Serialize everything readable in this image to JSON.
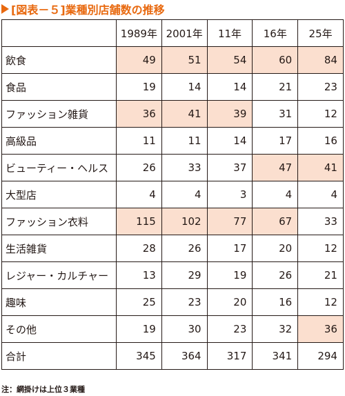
{
  "title": "[図表－５]業種別店舗数の推移",
  "highlight_color": "#fbdfcf",
  "accent_color": "#e8690f",
  "table": {
    "corner": "",
    "columns": [
      "1989年",
      "2001年",
      "11年",
      "16年",
      "25年"
    ],
    "rows": [
      {
        "label": "飲食",
        "values": [
          "49",
          "51",
          "54",
          "60",
          "84"
        ],
        "highlight": [
          true,
          true,
          true,
          true,
          true
        ]
      },
      {
        "label": "食品",
        "values": [
          "19",
          "14",
          "14",
          "21",
          "23"
        ],
        "highlight": [
          false,
          false,
          false,
          false,
          false
        ]
      },
      {
        "label": "ファッション雑貨",
        "values": [
          "36",
          "41",
          "39",
          "31",
          "12"
        ],
        "highlight": [
          true,
          true,
          true,
          false,
          false
        ]
      },
      {
        "label": "高級品",
        "values": [
          "11",
          "11",
          "14",
          "17",
          "16"
        ],
        "highlight": [
          false,
          false,
          false,
          false,
          false
        ]
      },
      {
        "label": "ビューティー・ヘルス",
        "values": [
          "26",
          "33",
          "37",
          "47",
          "41"
        ],
        "highlight": [
          false,
          false,
          false,
          true,
          true
        ]
      },
      {
        "label": "大型店",
        "values": [
          "4",
          "4",
          "3",
          "4",
          "4"
        ],
        "highlight": [
          false,
          false,
          false,
          false,
          false
        ]
      },
      {
        "label": "ファッション衣料",
        "values": [
          "115",
          "102",
          "77",
          "67",
          "33"
        ],
        "highlight": [
          true,
          true,
          true,
          true,
          false
        ]
      },
      {
        "label": "生活雑貨",
        "values": [
          "28",
          "26",
          "17",
          "20",
          "12"
        ],
        "highlight": [
          false,
          false,
          false,
          false,
          false
        ]
      },
      {
        "label": "レジャー・カルチャー",
        "values": [
          "13",
          "29",
          "19",
          "26",
          "21"
        ],
        "highlight": [
          false,
          false,
          false,
          false,
          false
        ]
      },
      {
        "label": "趣味",
        "values": [
          "25",
          "23",
          "20",
          "16",
          "12"
        ],
        "highlight": [
          false,
          false,
          false,
          false,
          false
        ]
      },
      {
        "label": "その他",
        "values": [
          "19",
          "30",
          "23",
          "32",
          "36"
        ],
        "highlight": [
          false,
          false,
          false,
          false,
          true
        ]
      },
      {
        "label": "合計",
        "values": [
          "345",
          "364",
          "317",
          "341",
          "294"
        ],
        "highlight": [
          false,
          false,
          false,
          false,
          false
        ]
      }
    ]
  },
  "note": "注：網掛けは上位３業種"
}
